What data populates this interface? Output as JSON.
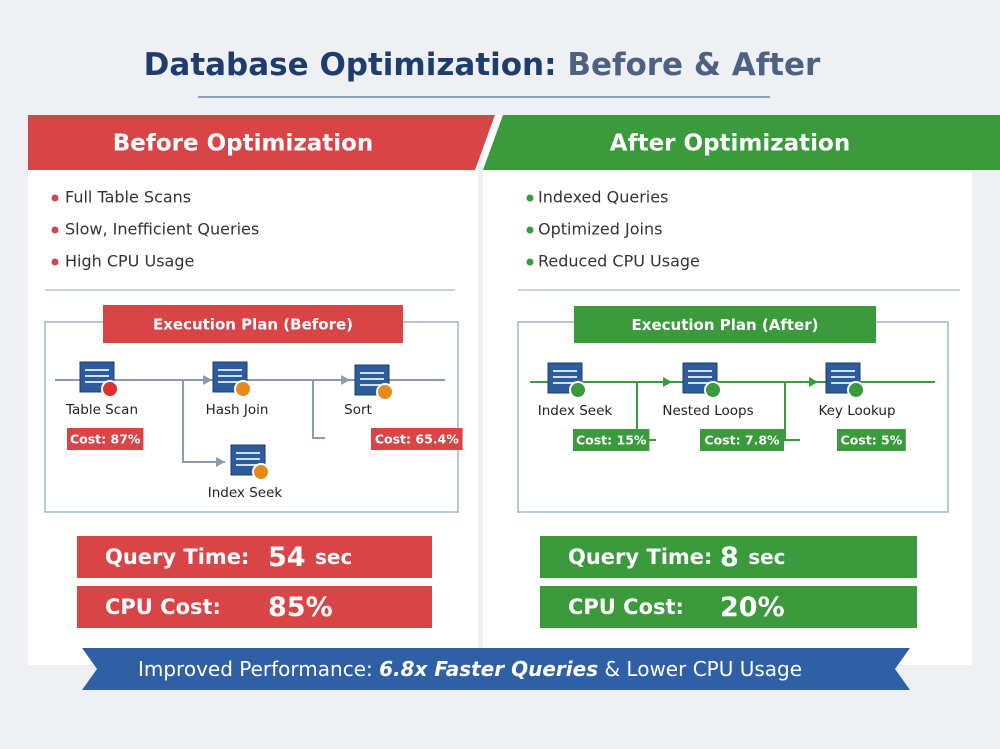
{
  "title": {
    "main": "Database Optimization:",
    "sub": "Before & After"
  },
  "panels": [
    {
      "heading": "Before Optimization",
      "bullets": [
        "Full Table Scans",
        "Slow, Inefficient Queries",
        "High CPU Usage"
      ],
      "plan": {
        "title": "Execution Plan (Before)",
        "nodes": [
          {
            "label": "Table Scan",
            "cost": "Cost: 87%"
          },
          {
            "label": "Hash Join"
          },
          {
            "label": "Sort",
            "cost": "Cost: 65.4%"
          },
          {
            "label": "Index Seek"
          }
        ]
      },
      "metrics": [
        {
          "label": "Query Time:",
          "value": "54",
          "unit": "sec"
        },
        {
          "label": "CPU Cost:",
          "value": "85%"
        }
      ]
    },
    {
      "heading": "After Optimization",
      "bullets": [
        "Indexed Queries",
        "Optimized Joins",
        "Reduced CPU Usage"
      ],
      "plan": {
        "title": "Execution Plan (After)",
        "nodes": [
          {
            "label": "Index Seek",
            "cost": "Cost: 15%"
          },
          {
            "label": "Nested Loops",
            "cost": "Cost: 7.8%"
          },
          {
            "label": "Key Lookup",
            "cost": "Cost: 5%"
          }
        ]
      },
      "metrics": [
        {
          "label": "Query Time:",
          "value": "8",
          "unit": "sec"
        },
        {
          "label": "CPU Cost:",
          "value": "20%"
        }
      ]
    }
  ],
  "footer": {
    "lead": "Improved Performance:",
    "highlight": "6.8x Faster Queries",
    "tail": "& Lower CPU Usage"
  }
}
